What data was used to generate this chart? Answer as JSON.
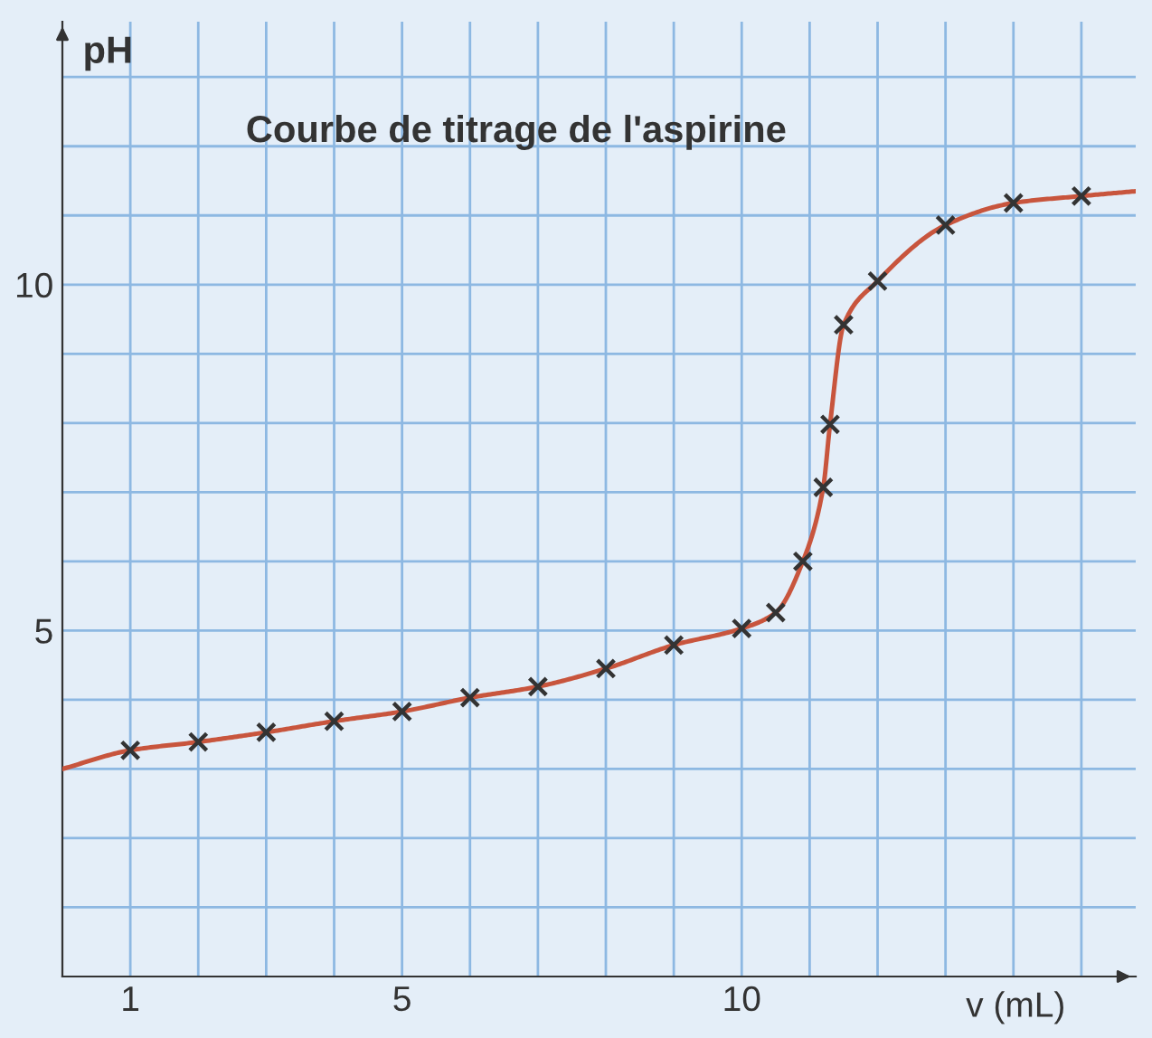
{
  "chart_data": {
    "type": "line",
    "title": "Courbe de titrage de l'aspirine",
    "xlabel": "v (mL)",
    "ylabel": "pH",
    "xlim": [
      0,
      15.8
    ],
    "ylim": [
      0,
      13.8
    ],
    "xticks": [
      1,
      {
        "value": 2,
        "label": null
      },
      {
        "value": 3,
        "label": null
      },
      {
        "value": 4,
        "label": null
      },
      5,
      {
        "value": 6,
        "label": null
      },
      {
        "value": 7,
        "label": null
      },
      {
        "value": 8,
        "label": null
      },
      {
        "value": 9,
        "label": null
      },
      10,
      {
        "value": 11,
        "label": null
      },
      {
        "value": 12,
        "label": null
      },
      {
        "value": 13,
        "label": null
      },
      {
        "value": 14,
        "label": null
      },
      {
        "value": 15,
        "label": null
      }
    ],
    "yticks": [
      {
        "value": 1,
        "label": null
      },
      {
        "value": 2,
        "label": null
      },
      {
        "value": 3,
        "label": null
      },
      {
        "value": 4,
        "label": null
      },
      5,
      {
        "value": 6,
        "label": null
      },
      {
        "value": 7,
        "label": null
      },
      {
        "value": 8,
        "label": null
      },
      {
        "value": 9,
        "label": null
      },
      10,
      {
        "value": 11,
        "label": null
      },
      {
        "value": 12,
        "label": null
      },
      {
        "value": 13,
        "label": null
      }
    ],
    "grid": true,
    "series": [
      {
        "type": "line",
        "color": "#c8553d",
        "marker": "none",
        "x": [
          0,
          1,
          2,
          3,
          4,
          5,
          6,
          7,
          8,
          9,
          10,
          10.5,
          10.9,
          11.2,
          11.3,
          11.5,
          12,
          13,
          14,
          15,
          15.8
        ],
        "values": [
          3.0,
          3.27,
          3.39,
          3.53,
          3.69,
          3.83,
          4.03,
          4.19,
          4.45,
          4.79,
          5.03,
          5.26,
          6.0,
          7.07,
          7.98,
          9.42,
          10.05,
          10.86,
          11.18,
          11.28,
          11.35
        ]
      },
      {
        "type": "scatter",
        "color": "#333333",
        "marker": "cross",
        "x": [
          1,
          2,
          3,
          4,
          5,
          6,
          7,
          8,
          9,
          10,
          10.5,
          10.9,
          11.2,
          11.3,
          11.5,
          12,
          13,
          14,
          15
        ],
        "values": [
          3.27,
          3.39,
          3.53,
          3.69,
          3.83,
          4.03,
          4.19,
          4.45,
          4.79,
          5.03,
          5.26,
          6.0,
          7.07,
          7.98,
          9.42,
          10.05,
          10.86,
          11.18,
          11.28
        ]
      }
    ]
  }
}
